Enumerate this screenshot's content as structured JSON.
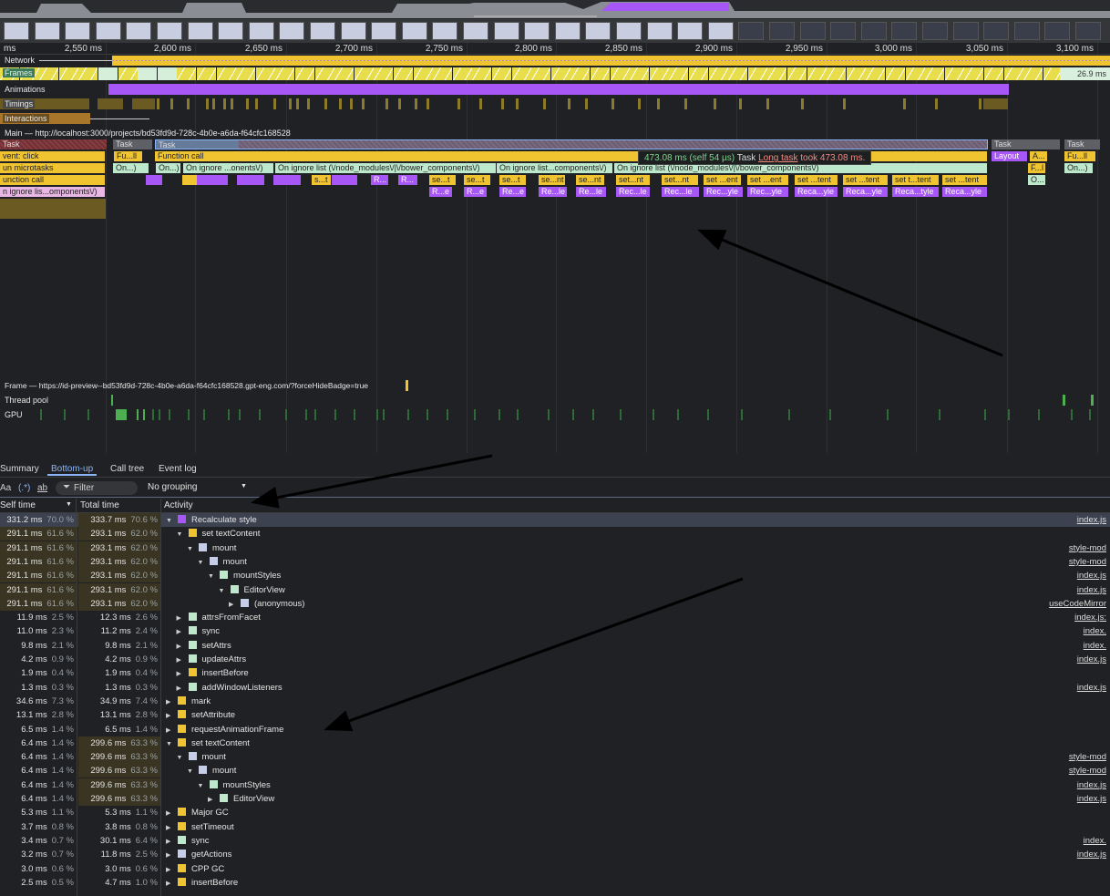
{
  "ruler": {
    "ticks": [
      "ms",
      "2,550 ms",
      "2,600 ms",
      "2,650 ms",
      "2,700 ms",
      "2,750 ms",
      "2,800 ms",
      "2,850 ms",
      "2,900 ms",
      "2,950 ms",
      "3,000 ms",
      "3,050 ms",
      "3,100 ms"
    ]
  },
  "tracks": {
    "network": "Network",
    "frames": "Frames",
    "frame_last": "26.9 ms",
    "animations": "Animations",
    "timings": "Timings",
    "interactions": "Interactions",
    "main": "Main — http://localhost:3000/projects/bd53fd9d-728c-4b0e-a6da-f64cfc168528",
    "frame": "Frame — https://id-preview--bd53fd9d-728c-4b0e-a6da-f64cfc168528.gpt-eng.com/?forceHideBadge=true",
    "thread_pool": "Thread pool",
    "gpu": "GPU"
  },
  "flame": {
    "row0": [
      "Task",
      "Task",
      "Task",
      "Task",
      "Task"
    ],
    "row1": [
      "vent: click",
      "Fu...ll",
      "Function call",
      "Layout",
      "A...",
      "Fu...ll"
    ],
    "row2": [
      "un microtasks",
      "On...)",
      "On...)",
      "On ignore ...onents\\/)",
      "On ignore list (\\/node_modules\\/|\\/bower_components\\/)",
      "On ignore list...components\\/)",
      "On ignore list (\\/node_modules\\/|\\/bower_components\\/)",
      "F...l",
      "On...)"
    ],
    "row3": [
      "unction call",
      "s...t",
      "R...",
      "R...",
      "se...t",
      "se...t",
      "se...t",
      "se...nt",
      "se...nt",
      "set...nt",
      "set...nt",
      "set ...ent",
      "set ...ent",
      "set ...tent",
      "set ...tent",
      "set t...tent",
      "set ...tent",
      "O..."
    ],
    "row4": [
      "n ignore lis...omponents\\/)",
      "R...e",
      "R...e",
      "Re...e",
      "Re...le",
      "Re...le",
      "Rec...le",
      "Rec...le",
      "Rec...yle",
      "Rec...yle",
      "Reca...yle",
      "Reca...yle",
      "Reca...tyle",
      "Reca...yle"
    ]
  },
  "tooltip": {
    "time": "473.08 ms (self 54 µs)",
    "name": "Task",
    "link": "Long task",
    "text": "took 473.08 ms."
  },
  "tabs": [
    "Summary",
    "Bottom-up",
    "Call tree",
    "Event log"
  ],
  "toolbar": {
    "match_case": "Aa",
    "regex": "(.*)",
    "whole_word": "ab",
    "filter_placeholder": "Filter",
    "grouping": "No grouping"
  },
  "table": {
    "headers": {
      "self": "Self time",
      "total": "Total time",
      "activity": "Activity"
    },
    "rows": [
      {
        "self": "331.2 ms",
        "sp": "70.0 %",
        "total": "333.7 ms",
        "tp": "70.6 %",
        "d": 0,
        "e": "down",
        "color": "#a657f5",
        "name": "Recalculate style",
        "link": "index.js"
      },
      {
        "self": "291.1 ms",
        "sp": "61.6 %",
        "total": "293.1 ms",
        "tp": "62.0 %",
        "d": 1,
        "e": "down",
        "color": "#f0c330",
        "name": "set textContent",
        "link": ""
      },
      {
        "self": "291.1 ms",
        "sp": "61.6 %",
        "total": "293.1 ms",
        "tp": "62.0 %",
        "d": 2,
        "e": "down",
        "color": "#c5cee6",
        "name": "mount",
        "link": "style-mod"
      },
      {
        "self": "291.1 ms",
        "sp": "61.6 %",
        "total": "293.1 ms",
        "tp": "62.0 %",
        "d": 3,
        "e": "down",
        "color": "#c5cee6",
        "name": "mount",
        "link": "style-mod"
      },
      {
        "self": "291.1 ms",
        "sp": "61.6 %",
        "total": "293.1 ms",
        "tp": "62.0 %",
        "d": 4,
        "e": "down",
        "color": "#bde8cc",
        "name": "mountStyles",
        "link": "index.js"
      },
      {
        "self": "291.1 ms",
        "sp": "61.6 %",
        "total": "293.1 ms",
        "tp": "62.0 %",
        "d": 5,
        "e": "down",
        "color": "#bde8cc",
        "name": "EditorView",
        "link": "index.js"
      },
      {
        "self": "291.1 ms",
        "sp": "61.6 %",
        "total": "293.1 ms",
        "tp": "62.0 %",
        "d": 6,
        "e": "right",
        "color": "#c5cee6",
        "name": "(anonymous)",
        "link": "useCodeMirror"
      },
      {
        "self": "11.9 ms",
        "sp": "2.5 %",
        "total": "12.3 ms",
        "tp": "2.6 %",
        "d": 1,
        "e": "right",
        "color": "#bde8cc",
        "name": "attrsFromFacet",
        "link": "index.js:"
      },
      {
        "self": "11.0 ms",
        "sp": "2.3 %",
        "total": "11.2 ms",
        "tp": "2.4 %",
        "d": 1,
        "e": "right",
        "color": "#bde8cc",
        "name": "sync",
        "link": "index."
      },
      {
        "self": "9.8 ms",
        "sp": "2.1 %",
        "total": "9.8 ms",
        "tp": "2.1 %",
        "d": 1,
        "e": "right",
        "color": "#bde8cc",
        "name": "setAttrs",
        "link": "index."
      },
      {
        "self": "4.2 ms",
        "sp": "0.9 %",
        "total": "4.2 ms",
        "tp": "0.9 %",
        "d": 1,
        "e": "right",
        "color": "#bde8cc",
        "name": "updateAttrs",
        "link": "index.js"
      },
      {
        "self": "1.9 ms",
        "sp": "0.4 %",
        "total": "1.9 ms",
        "tp": "0.4 %",
        "d": 1,
        "e": "right",
        "color": "#f0c330",
        "name": "insertBefore",
        "link": ""
      },
      {
        "self": "1.3 ms",
        "sp": "0.3 %",
        "total": "1.3 ms",
        "tp": "0.3 %",
        "d": 1,
        "e": "right",
        "color": "#bde8cc",
        "name": "addWindowListeners",
        "link": "index.js"
      },
      {
        "self": "34.6 ms",
        "sp": "7.3 %",
        "total": "34.9 ms",
        "tp": "7.4 %",
        "d": 0,
        "e": "right",
        "color": "#f0c330",
        "name": "mark",
        "link": ""
      },
      {
        "self": "13.1 ms",
        "sp": "2.8 %",
        "total": "13.1 ms",
        "tp": "2.8 %",
        "d": 0,
        "e": "right",
        "color": "#f0c330",
        "name": "setAttribute",
        "link": ""
      },
      {
        "self": "6.5 ms",
        "sp": "1.4 %",
        "total": "6.5 ms",
        "tp": "1.4 %",
        "d": 0,
        "e": "right",
        "color": "#f0c330",
        "name": "requestAnimationFrame",
        "link": ""
      },
      {
        "self": "6.4 ms",
        "sp": "1.4 %",
        "total": "299.6 ms",
        "tp": "63.3 %",
        "d": 0,
        "e": "down",
        "color": "#f0c330",
        "name": "set textContent",
        "link": ""
      },
      {
        "self": "6.4 ms",
        "sp": "1.4 %",
        "total": "299.6 ms",
        "tp": "63.3 %",
        "d": 1,
        "e": "down",
        "color": "#c5cee6",
        "name": "mount",
        "link": "style-mod"
      },
      {
        "self": "6.4 ms",
        "sp": "1.4 %",
        "total": "299.6 ms",
        "tp": "63.3 %",
        "d": 2,
        "e": "down",
        "color": "#c5cee6",
        "name": "mount",
        "link": "style-mod"
      },
      {
        "self": "6.4 ms",
        "sp": "1.4 %",
        "total": "299.6 ms",
        "tp": "63.3 %",
        "d": 3,
        "e": "down",
        "color": "#bde8cc",
        "name": "mountStyles",
        "link": "index.js"
      },
      {
        "self": "6.4 ms",
        "sp": "1.4 %",
        "total": "299.6 ms",
        "tp": "63.3 %",
        "d": 4,
        "e": "right",
        "color": "#bde8cc",
        "name": "EditorView",
        "link": "index.js"
      },
      {
        "self": "5.3 ms",
        "sp": "1.1 %",
        "total": "5.3 ms",
        "tp": "1.1 %",
        "d": 0,
        "e": "right",
        "color": "#f0c330",
        "name": "Major GC",
        "link": ""
      },
      {
        "self": "3.7 ms",
        "sp": "0.8 %",
        "total": "3.8 ms",
        "tp": "0.8 %",
        "d": 0,
        "e": "right",
        "color": "#f0c330",
        "name": "setTimeout",
        "link": ""
      },
      {
        "self": "3.4 ms",
        "sp": "0.7 %",
        "total": "30.1 ms",
        "tp": "6.4 %",
        "d": 0,
        "e": "right",
        "color": "#bde8cc",
        "name": "sync",
        "link": "index."
      },
      {
        "self": "3.2 ms",
        "sp": "0.7 %",
        "total": "11.8 ms",
        "tp": "2.5 %",
        "d": 0,
        "e": "right",
        "color": "#c5cee6",
        "name": "getActions",
        "link": "index.js"
      },
      {
        "self": "3.0 ms",
        "sp": "0.6 %",
        "total": "3.0 ms",
        "tp": "0.6 %",
        "d": 0,
        "e": "right",
        "color": "#f0c330",
        "name": "CPP GC",
        "link": ""
      },
      {
        "self": "2.5 ms",
        "sp": "0.5 %",
        "total": "4.7 ms",
        "tp": "1.0 %",
        "d": 0,
        "e": "right",
        "color": "#f0c330",
        "name": "insertBefore",
        "link": ""
      }
    ]
  }
}
